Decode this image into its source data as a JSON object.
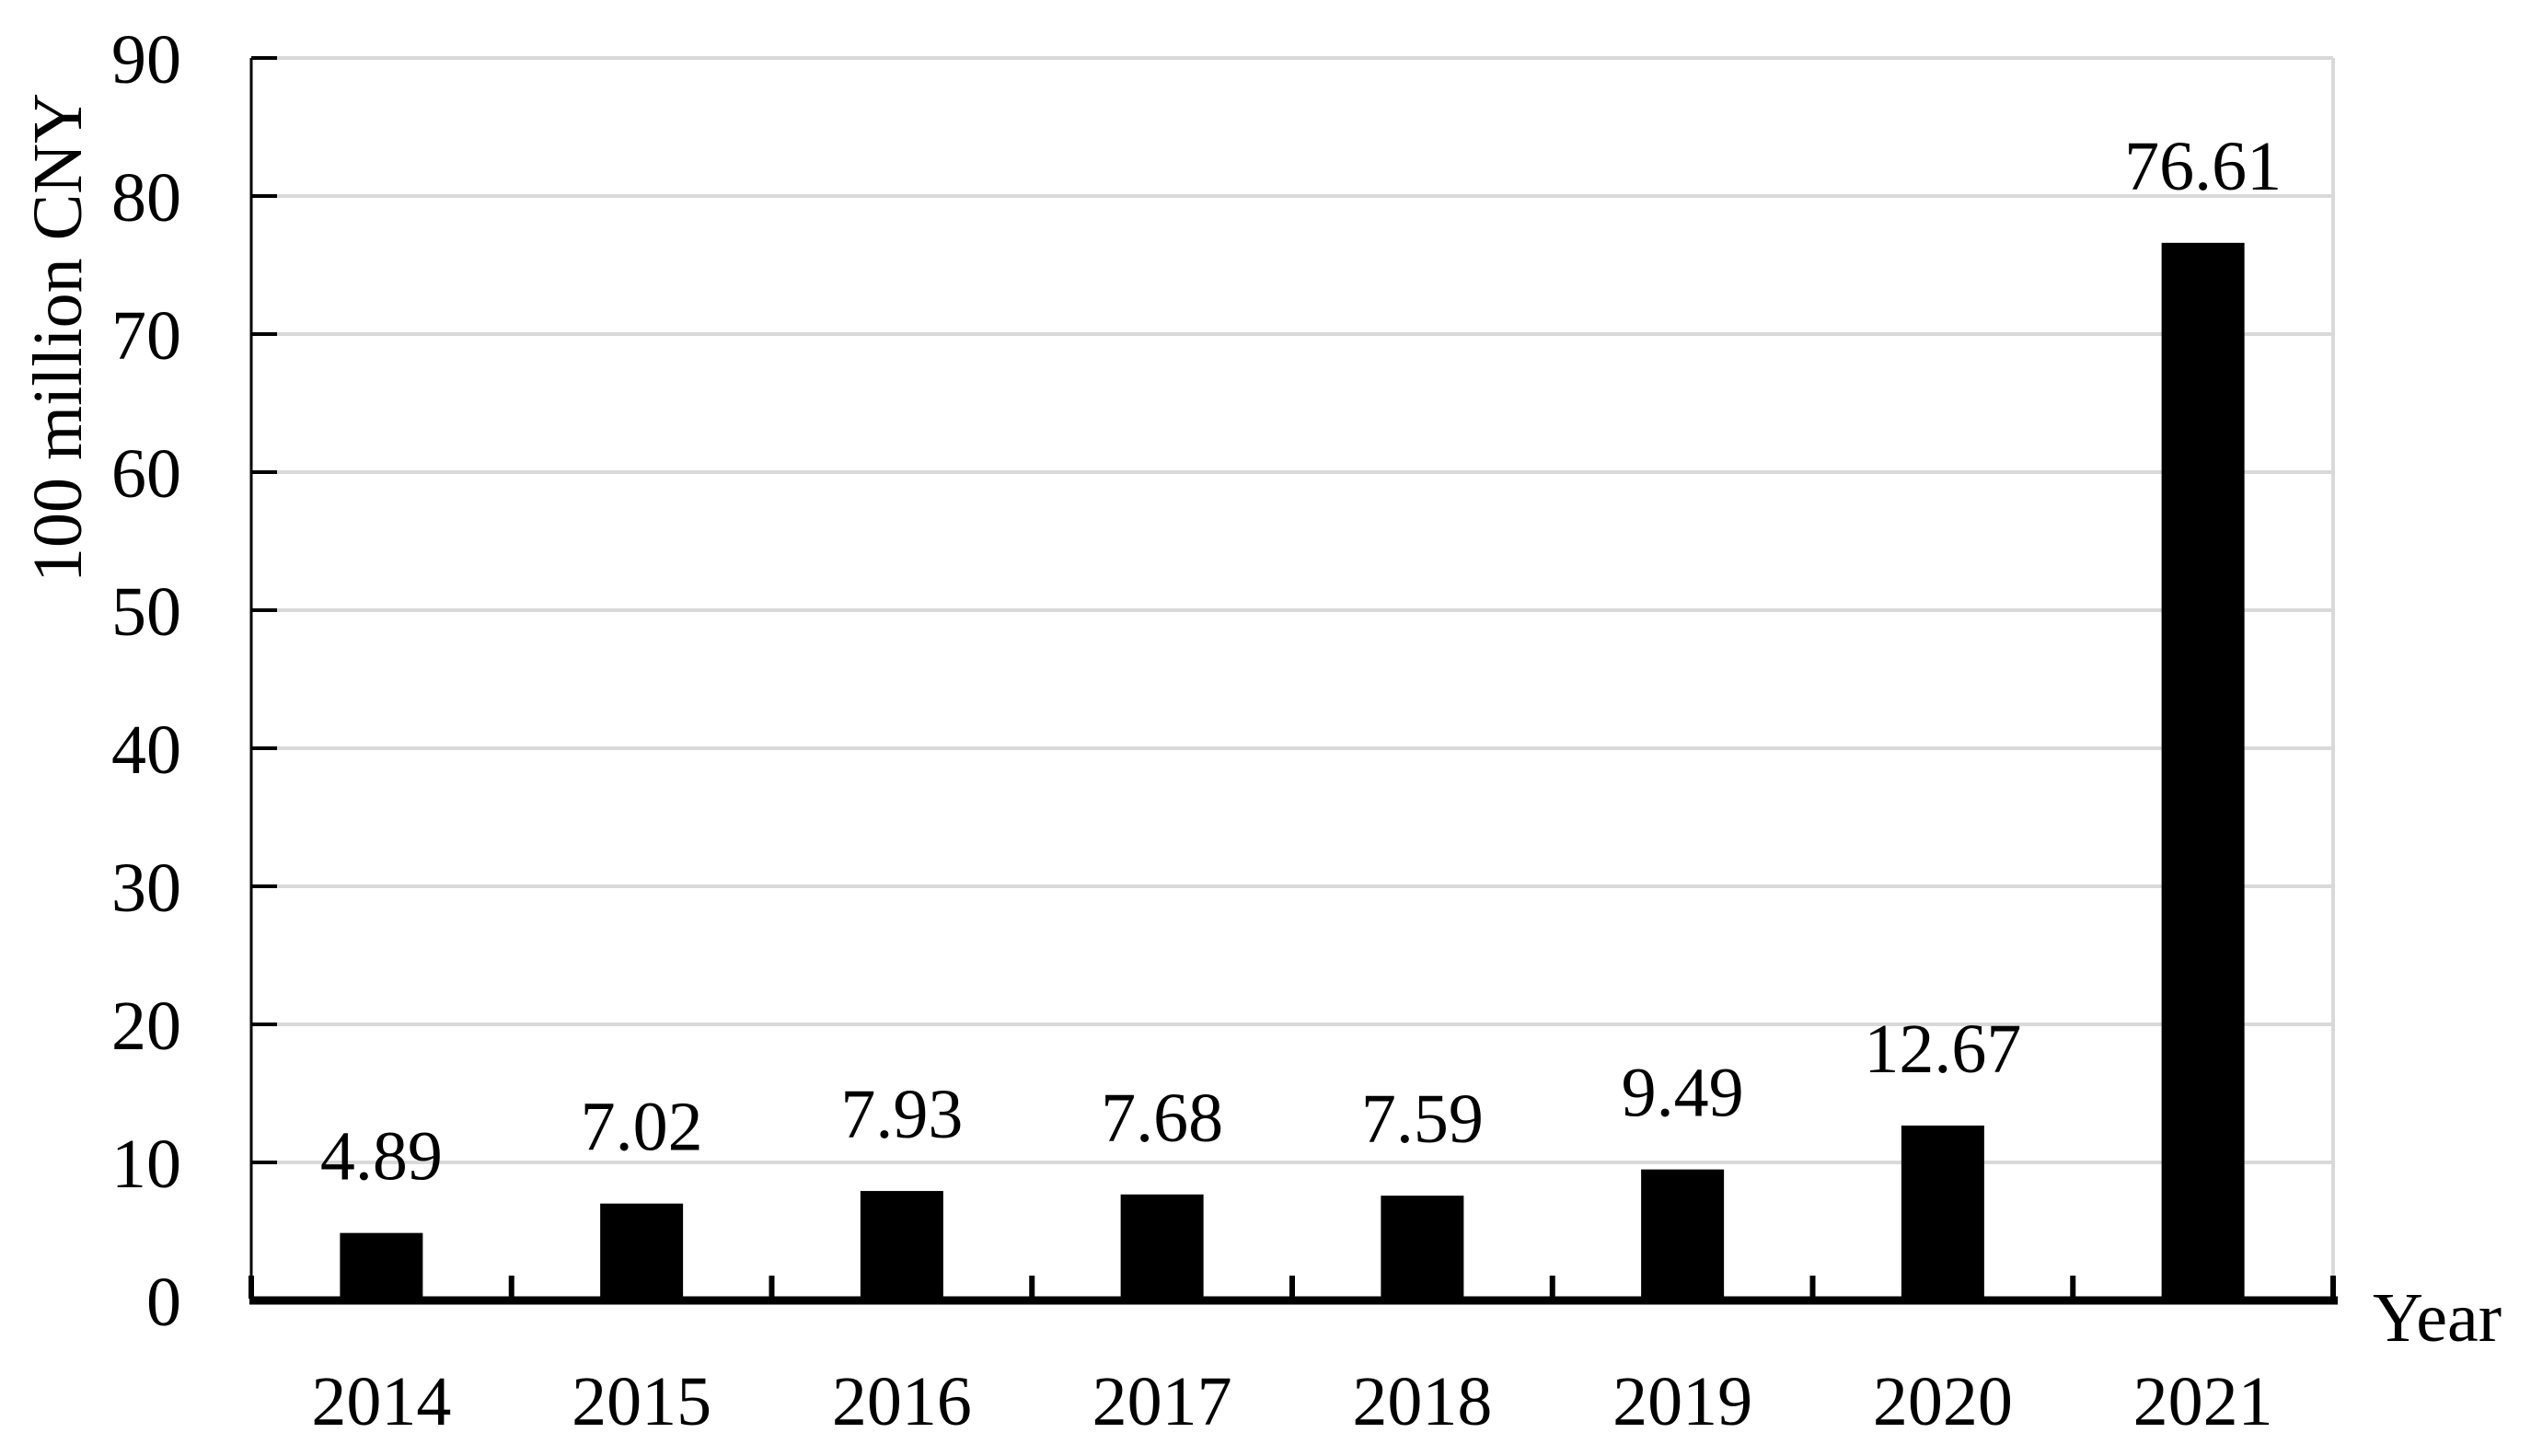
{
  "figure": {
    "background": "#ffffff"
  },
  "chart_data": {
    "type": "bar",
    "title": "",
    "categories": [
      "2014",
      "2015",
      "2016",
      "2017",
      "2018",
      "2019",
      "2020",
      "2021"
    ],
    "values": [
      4.89,
      7.02,
      7.93,
      7.68,
      7.59,
      9.49,
      12.67,
      76.61
    ],
    "data_labels": [
      "4.89",
      "7.02",
      "7.93",
      "7.68",
      "7.59",
      "9.49",
      "12.67",
      "76.61"
    ],
    "xlabel": "Year",
    "ylabel": "100 million CNY",
    "ylim": [
      0,
      90
    ],
    "y_ticks": [
      0,
      10,
      20,
      30,
      40,
      50,
      60,
      70,
      80,
      90
    ],
    "y_tick_labels": [
      "0",
      "10",
      "20",
      "30",
      "40",
      "50",
      "60",
      "70",
      "80",
      "90"
    ],
    "grid": "horizontal",
    "legend": "none",
    "bar_color": "#000000",
    "gridline_color": "#d9d9d9",
    "axis_color": "#000000",
    "text_color": "#000000"
  }
}
